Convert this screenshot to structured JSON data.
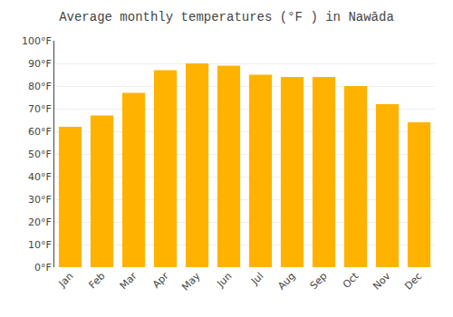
{
  "chart_data": {
    "type": "bar",
    "title": "Average monthly temperatures (°F ) in Nawāda",
    "categories": [
      "Jan",
      "Feb",
      "Mar",
      "Apr",
      "May",
      "Jun",
      "Jul",
      "Aug",
      "Sep",
      "Oct",
      "Nov",
      "Dec"
    ],
    "values": [
      62,
      67,
      77,
      87,
      90,
      89,
      85,
      84,
      84,
      80,
      72,
      64
    ],
    "color": "#FFB300",
    "ylim": [
      0,
      100
    ],
    "yticks": [
      {
        "value": 0,
        "label": "0°F"
      },
      {
        "value": 10,
        "label": "10°F"
      },
      {
        "value": 20,
        "label": "20°F"
      },
      {
        "value": 30,
        "label": "30°F"
      },
      {
        "value": 40,
        "label": "40°F"
      },
      {
        "value": 50,
        "label": "50°F"
      },
      {
        "value": 60,
        "label": "60°F"
      },
      {
        "value": 70,
        "label": "70°F"
      },
      {
        "value": 80,
        "label": "80°F"
      },
      {
        "value": 90,
        "label": "90°F"
      },
      {
        "value": 100,
        "label": "100°F"
      }
    ],
    "grid": true
  }
}
